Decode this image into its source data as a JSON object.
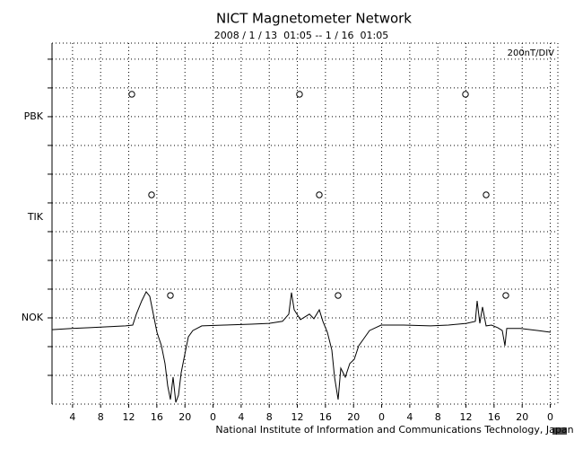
{
  "chart_data": {
    "type": "line",
    "title": "NICT Magnetometer Network",
    "subtitle": "2008 / 1 / 13  01:05 -- 1 / 16  01:05",
    "scale_label": "200nT/DIV",
    "footer": "National Institute of Information and Communications Technology, Japan",
    "xlim": [
      1.08,
      73.08
    ],
    "xticks": [
      4,
      8,
      12,
      16,
      20,
      {
        "value": 24,
        "label": "0"
      },
      {
        "value": 28,
        "label": "4"
      },
      {
        "value": 32,
        "label": "8"
      },
      {
        "value": 36,
        "label": "12"
      },
      {
        "value": 40,
        "label": "16"
      },
      {
        "value": 44,
        "label": "20"
      },
      {
        "value": 48,
        "label": "0"
      },
      {
        "value": 52,
        "label": "4"
      },
      {
        "value": 56,
        "label": "8"
      },
      {
        "value": 60,
        "label": "12"
      },
      {
        "value": 64,
        "label": "16"
      },
      {
        "value": 68,
        "label": "20"
      },
      {
        "value": 72,
        "label": "0"
      }
    ],
    "ylim": [
      0,
      12.56
    ],
    "yticks": [
      {
        "value": 3,
        "label": "NOK"
      },
      {
        "value": 6.5,
        "label": "TIK"
      },
      {
        "value": 10,
        "label": "PBK"
      }
    ],
    "ygrid": [
      1,
      2,
      3,
      4,
      5,
      6,
      7,
      8,
      9,
      10,
      11,
      12
    ],
    "grid": true,
    "series": [
      {
        "color": "#000000",
        "x": [
          1.08,
          3.89,
          6.44,
          8.99,
          11.55,
          12.57,
          13.08,
          13.84,
          14.48,
          14.99,
          15.38,
          16.02,
          16.65,
          17.16,
          17.55,
          17.93,
          18.31,
          18.7,
          19.08,
          19.46,
          19.97,
          20.48,
          21.12,
          22.4,
          25.59,
          29.42,
          31.97,
          33.89,
          34.78,
          35.16,
          35.55,
          36.44,
          37.72,
          38.36,
          39.12,
          39.63,
          40.27,
          40.91,
          41.29,
          41.8,
          42.19,
          42.82,
          43.46,
          44.1,
          44.74,
          45.38,
          46.27,
          47.93,
          51.12,
          54.95,
          57.5,
          60.06,
          61.34,
          61.59,
          61.97,
          62.36,
          62.87,
          63.63,
          64.53,
          65.16,
          65.55,
          65.8,
          67.72,
          70.27,
          72.06
        ],
        "values": [
          2.59,
          2.63,
          2.66,
          2.69,
          2.72,
          2.75,
          3.13,
          3.59,
          3.91,
          3.75,
          3.28,
          2.5,
          2.03,
          1.41,
          0.63,
          0.16,
          0.94,
          0.06,
          0.31,
          1.09,
          1.72,
          2.34,
          2.56,
          2.72,
          2.75,
          2.78,
          2.81,
          2.88,
          3.13,
          3.88,
          3.28,
          2.94,
          3.13,
          2.97,
          3.28,
          2.88,
          2.5,
          1.88,
          0.94,
          0.16,
          1.25,
          0.94,
          1.41,
          1.56,
          2.03,
          2.25,
          2.56,
          2.75,
          2.75,
          2.72,
          2.75,
          2.81,
          2.88,
          3.59,
          2.81,
          3.38,
          2.72,
          2.75,
          2.66,
          2.56,
          2.03,
          2.63,
          2.63,
          2.56,
          2.5
        ]
      }
    ],
    "points": {
      "x": [
        12.44,
        36.31,
        59.93,
        15.25,
        39.12,
        62.87,
        17.93,
        41.8,
        65.67
      ],
      "y": [
        10.78,
        10.78,
        10.78,
        7.28,
        7.28,
        7.28,
        3.78,
        3.78,
        3.78
      ]
    }
  }
}
